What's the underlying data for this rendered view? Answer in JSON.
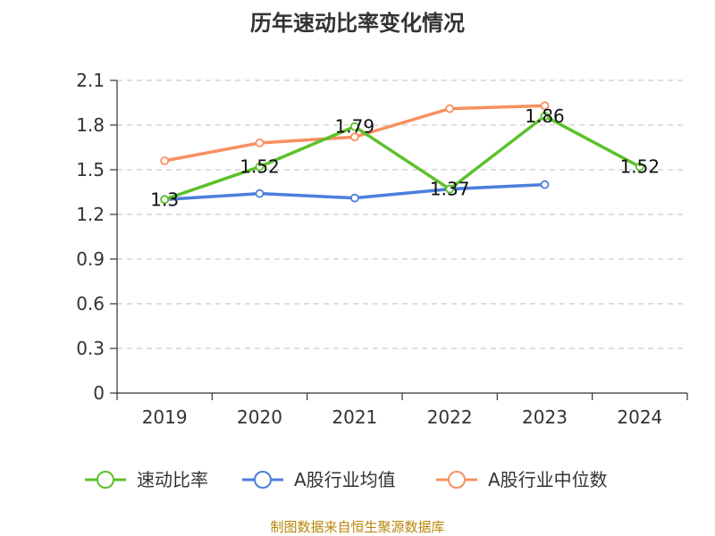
{
  "chart_data": {
    "type": "line",
    "title": "历年速动比率变化情况",
    "categories": [
      "2019",
      "2020",
      "2021",
      "2022",
      "2023",
      "2024"
    ],
    "ylim": [
      0,
      2.1
    ],
    "yticks": [
      "0",
      "0.3",
      "0.6",
      "0.9",
      "1.2",
      "1.5",
      "1.8",
      "2.1"
    ],
    "grid": true,
    "legend_position": "bottom",
    "series": [
      {
        "name": "速动比率",
        "color": "#5cc12b",
        "values": [
          1.3,
          1.52,
          1.79,
          1.37,
          1.86,
          1.52
        ],
        "labels": [
          "1.3",
          "1.52",
          "1.79",
          "1.37",
          "1.86",
          "1.52"
        ]
      },
      {
        "name": "A股行业均值",
        "color": "#4c7fdc",
        "values": [
          1.3,
          1.34,
          1.31,
          1.37,
          1.4,
          null
        ]
      },
      {
        "name": "A股行业中位数",
        "color": "#f79060",
        "values": [
          1.56,
          1.68,
          1.72,
          1.91,
          1.93,
          null
        ]
      }
    ]
  },
  "source": "制图数据来自恒生聚源数据库"
}
